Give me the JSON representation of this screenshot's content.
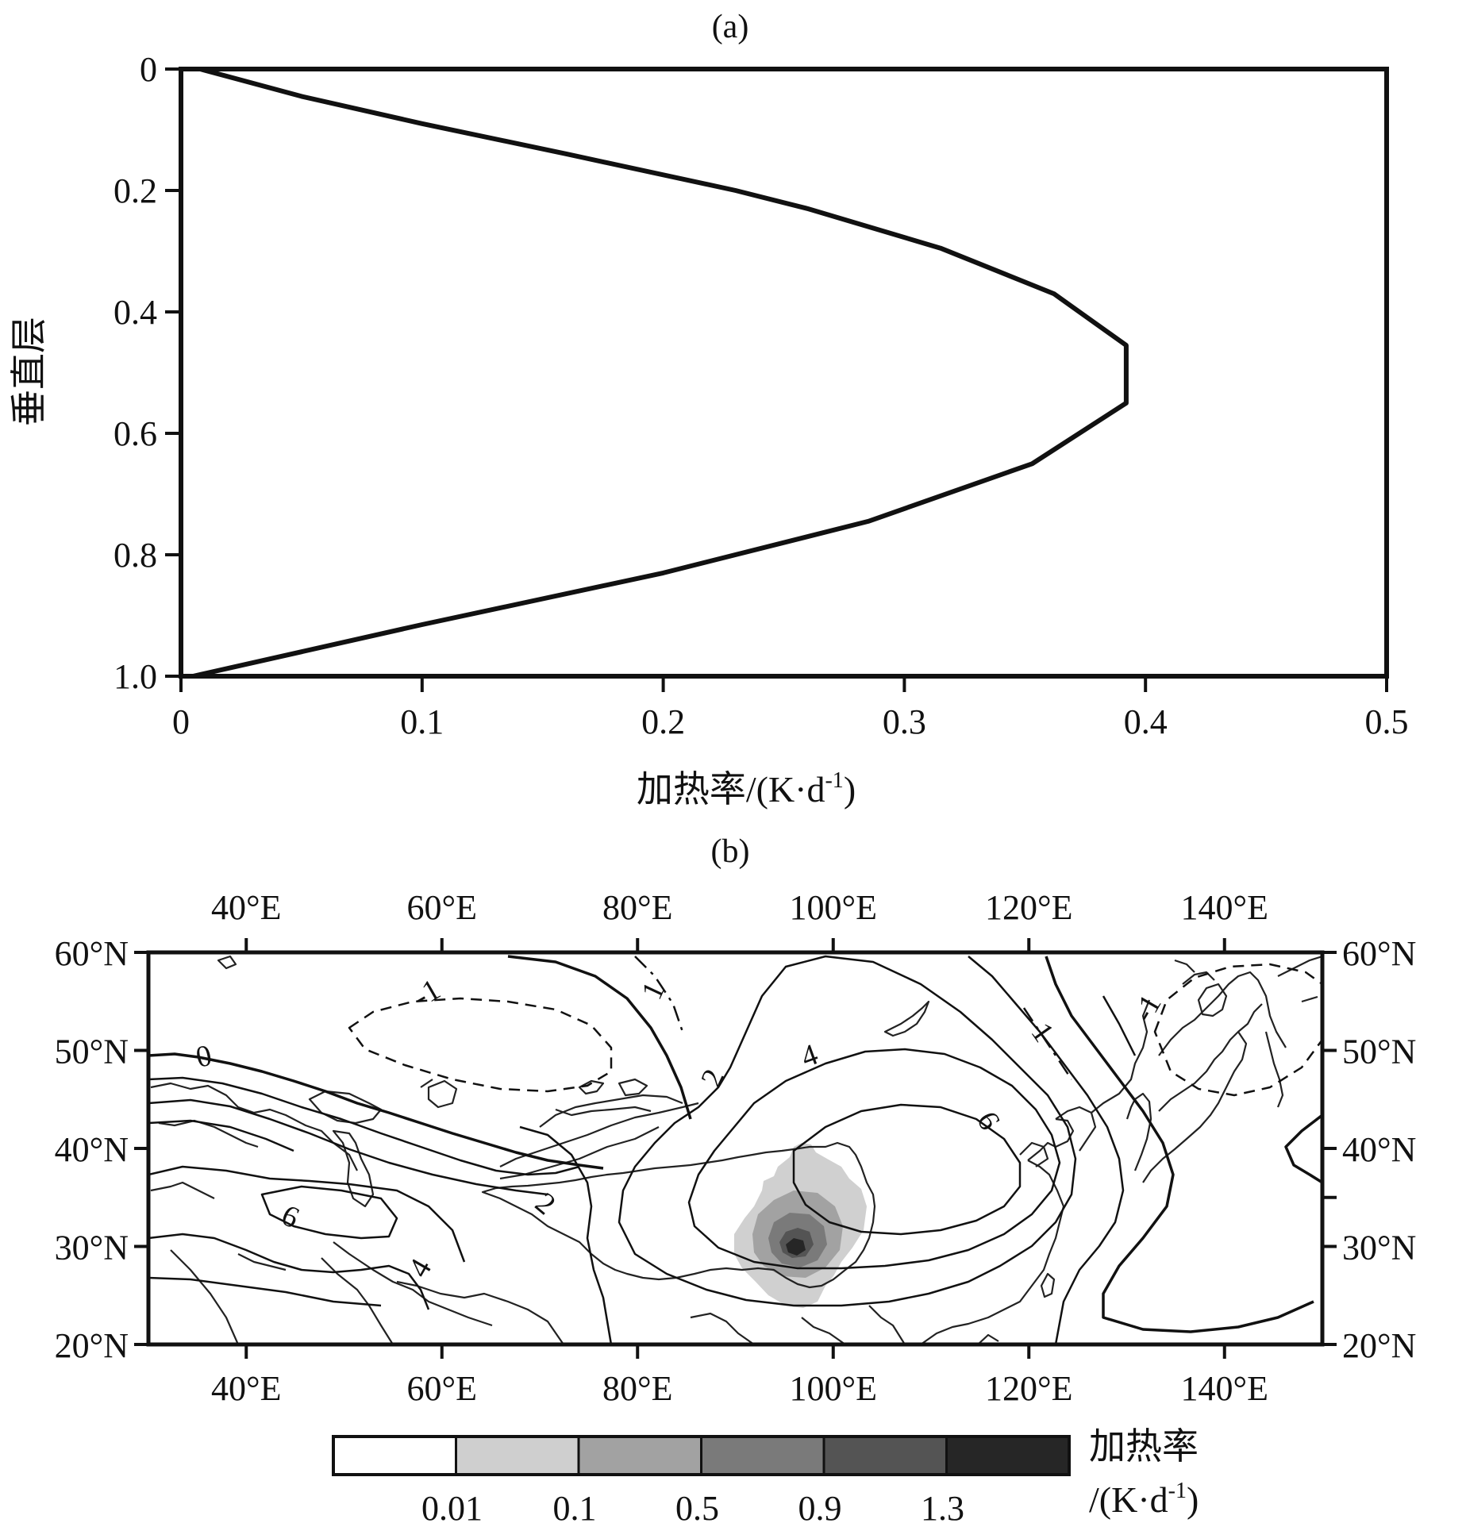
{
  "chart_data": [
    {
      "panel_label": "(a)",
      "type": "line",
      "xlabel": "加热率/(K·d",
      "xlabel_sup": "-1",
      "xlabel_close": ")",
      "ylabel": "垂直层",
      "xlim": [
        0,
        0.5
      ],
      "ylim": [
        0,
        1.0
      ],
      "y_inverted": true,
      "xticks": [
        "0",
        "0.1",
        "0.2",
        "0.3",
        "0.4",
        "0.5"
      ],
      "yticks": [
        "0",
        "0.2",
        "0.4",
        "0.6",
        "0.8",
        "1.0"
      ],
      "grid": false,
      "series": [
        {
          "x": [
            0.008,
            0.05,
            0.1,
            0.16,
            0.23,
            0.26,
            0.315,
            0.362,
            0.392,
            0.392,
            0.353,
            0.285,
            0.2,
            0.1,
            0.005
          ],
          "y": [
            0.0,
            0.045,
            0.09,
            0.14,
            0.2,
            0.23,
            0.295,
            0.37,
            0.455,
            0.55,
            0.65,
            0.745,
            0.83,
            0.915,
            1.0
          ]
        }
      ]
    },
    {
      "panel_label": "(b)",
      "type": "heatmap",
      "xticks_top": [
        "40°E",
        "60°E",
        "80°E",
        "100°E",
        "120°E",
        "140°E"
      ],
      "xticks_bottom": [
        "40°E",
        "60°E",
        "80°E",
        "100°E",
        "120°E",
        "140°E"
      ],
      "yticks_left": [
        "60°N",
        "50°N",
        "40°N",
        "30°N",
        "20°N"
      ],
      "yticks_right": [
        "60°N",
        "50°N",
        "40°N",
        "30°N",
        "20°N"
      ],
      "lon_range": [
        30,
        150
      ],
      "lat_range": [
        20,
        60
      ],
      "heating_center": {
        "lon": 96,
        "lat": 29.5
      },
      "contour_labels": [
        "0",
        "-1",
        "1",
        "2",
        "4",
        "6",
        "2",
        "6",
        "4",
        "1",
        "-1"
      ],
      "colorbar": {
        "colors": [
          "#ffffff",
          "#cfcfcf",
          "#a2a2a2",
          "#7a7a7a",
          "#545454",
          "#262626"
        ],
        "ticks": [
          "0.01",
          "0.1",
          "0.5",
          "0.9",
          "1.3"
        ],
        "label": "加热率",
        "unit": "/(K·d",
        "unit_sup": "-1",
        "unit_close": ")"
      }
    }
  ]
}
